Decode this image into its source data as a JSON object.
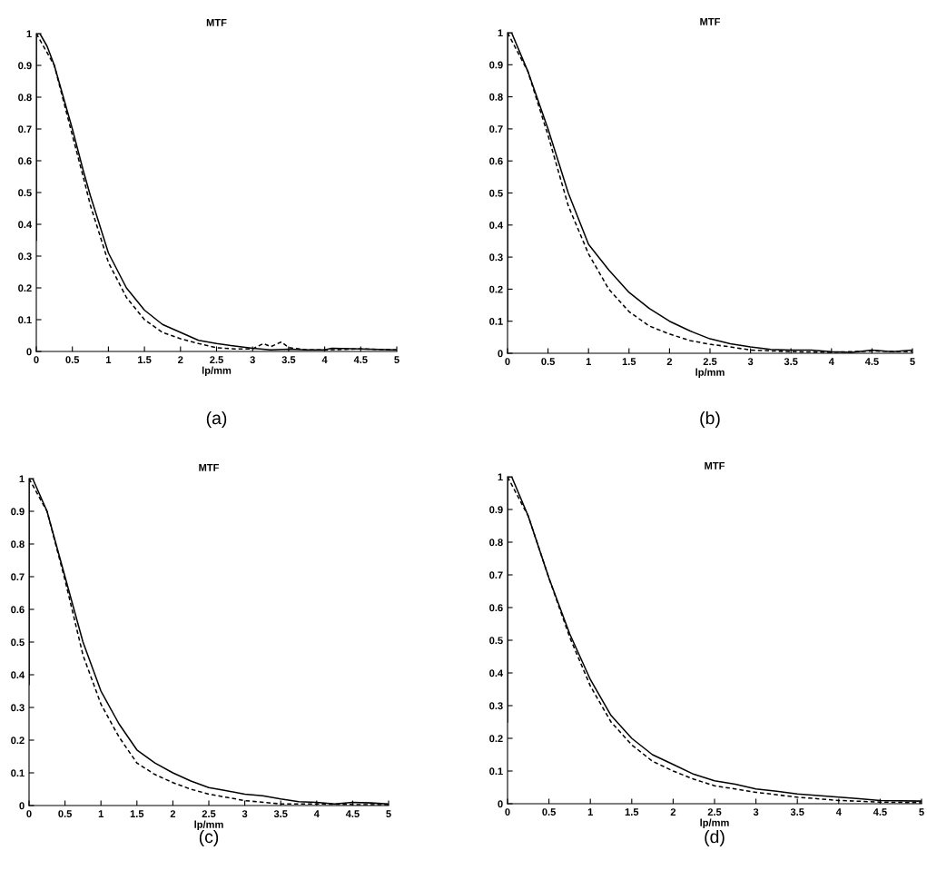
{
  "chart_data": [
    {
      "type": "line",
      "title": "MTF",
      "xlabel": "lp/mm",
      "annotations": [
        "(a)"
      ],
      "xlim": [
        0,
        5
      ],
      "ylim": [
        0,
        1
      ],
      "xticks": [
        0,
        0.5,
        1,
        1.5,
        2,
        2.5,
        3,
        3.5,
        4,
        4.5,
        5
      ],
      "yticks": [
        0,
        0.1,
        0.2,
        0.3,
        0.4,
        0.5,
        0.6,
        0.7,
        0.8,
        0.9,
        1
      ],
      "grid": false,
      "legend": false,
      "series": [
        {
          "color": "#000000",
          "line_style": "solid",
          "x": [
            0,
            0,
            0.05,
            0.15,
            0.25,
            0.35,
            0.5,
            0.65,
            0.75,
            1.0,
            1.25,
            1.5,
            1.75,
            2,
            2.25,
            2.5,
            2.75,
            3,
            3.25,
            3.5,
            3.75,
            4,
            4.1,
            4.5,
            5
          ],
          "values": [
            0.35,
            1.0,
            1.0,
            0.96,
            0.9,
            0.82,
            0.7,
            0.57,
            0.49,
            0.31,
            0.2,
            0.13,
            0.085,
            0.06,
            0.035,
            0.025,
            0.017,
            0.01,
            0.005,
            0.007,
            0.005,
            0.005,
            0.01,
            0.008,
            0.005
          ]
        },
        {
          "color": "#000000",
          "line_style": "dashed",
          "x": [
            0,
            0.25,
            0.5,
            0.65,
            0.75,
            1,
            1.25,
            1.5,
            1.75,
            2,
            2.25,
            2.5,
            2.75,
            3,
            3.15,
            3.25,
            3.4,
            3.5,
            3.75,
            4,
            4.5,
            5
          ],
          "values": [
            1.0,
            0.9,
            0.68,
            0.55,
            0.46,
            0.28,
            0.17,
            0.1,
            0.06,
            0.04,
            0.025,
            0.012,
            0.008,
            0.008,
            0.025,
            0.015,
            0.03,
            0.012,
            0.005,
            0.005,
            0.008,
            0.005
          ]
        }
      ]
    },
    {
      "type": "line",
      "title": "MTF",
      "xlabel": "lp/mm",
      "annotations": [
        "(b)"
      ],
      "xlim": [
        0,
        5
      ],
      "ylim": [
        0,
        1
      ],
      "xticks": [
        0,
        0.5,
        1,
        1.5,
        2,
        2.5,
        3,
        3.5,
        4,
        4.5,
        5
      ],
      "yticks": [
        0,
        0.1,
        0.2,
        0.3,
        0.4,
        0.5,
        0.6,
        0.7,
        0.8,
        0.9,
        1
      ],
      "grid": false,
      "legend": false,
      "series": [
        {
          "color": "#000000",
          "line_style": "solid",
          "x": [
            0,
            0,
            0.05,
            0.25,
            0.5,
            0.75,
            1,
            1.25,
            1.5,
            1.75,
            2,
            2.25,
            2.5,
            2.75,
            3,
            3.25,
            3.5,
            3.75,
            4,
            4.25,
            4.5,
            4.75,
            5
          ],
          "values": [
            0.1,
            1.0,
            1.0,
            0.88,
            0.7,
            0.5,
            0.34,
            0.26,
            0.19,
            0.14,
            0.1,
            0.07,
            0.045,
            0.03,
            0.02,
            0.012,
            0.01,
            0.01,
            0.005,
            0.003,
            0.01,
            0.005,
            0.01
          ]
        },
        {
          "color": "#000000",
          "line_style": "dashed",
          "x": [
            0,
            0.25,
            0.5,
            0.75,
            1,
            1.25,
            1.5,
            1.75,
            2,
            2.25,
            2.5,
            2.75,
            3,
            3.5,
            4,
            4.5,
            5
          ],
          "values": [
            1.0,
            0.88,
            0.68,
            0.46,
            0.31,
            0.2,
            0.13,
            0.085,
            0.06,
            0.04,
            0.028,
            0.02,
            0.01,
            0.005,
            0.003,
            0.007,
            0.005
          ]
        }
      ]
    },
    {
      "type": "line",
      "title": "MTF",
      "xlabel": "lp/mm",
      "annotations": [
        "(c)"
      ],
      "xlim": [
        0,
        5
      ],
      "ylim": [
        0,
        1
      ],
      "xticks": [
        0,
        0.5,
        1,
        1.5,
        2,
        2.5,
        3,
        3.5,
        4,
        4.5,
        5
      ],
      "yticks": [
        0,
        0.1,
        0.2,
        0.3,
        0.4,
        0.5,
        0.6,
        0.7,
        0.8,
        0.9,
        1
      ],
      "grid": false,
      "legend": false,
      "series": [
        {
          "color": "#000000",
          "line_style": "solid",
          "x": [
            0,
            0,
            0.05,
            0.25,
            0.5,
            0.75,
            1,
            1.25,
            1.5,
            1.75,
            2,
            2.25,
            2.5,
            2.75,
            3,
            3.25,
            3.5,
            3.75,
            4,
            4.25,
            4.5,
            4.75,
            5
          ],
          "values": [
            0.37,
            1.0,
            1.0,
            0.9,
            0.7,
            0.5,
            0.35,
            0.25,
            0.17,
            0.13,
            0.1,
            0.075,
            0.055,
            0.045,
            0.035,
            0.03,
            0.02,
            0.012,
            0.01,
            0.005,
            0.01,
            0.008,
            0.005
          ]
        },
        {
          "color": "#000000",
          "line_style": "dashed",
          "x": [
            0,
            0.25,
            0.5,
            0.75,
            1,
            1.25,
            1.5,
            1.75,
            2,
            2.25,
            2.5,
            2.75,
            3,
            3.5,
            4,
            4.5,
            5
          ],
          "values": [
            1.0,
            0.9,
            0.69,
            0.46,
            0.31,
            0.21,
            0.13,
            0.095,
            0.07,
            0.05,
            0.035,
            0.025,
            0.015,
            0.005,
            0.005,
            0.003,
            0.003
          ]
        }
      ]
    },
    {
      "type": "line",
      "title": "MTF",
      "xlabel": "lp/mm",
      "annotations": [
        "(d)"
      ],
      "xlim": [
        0,
        5
      ],
      "ylim": [
        0,
        1
      ],
      "xticks": [
        0,
        0.5,
        1,
        1.5,
        2,
        2.5,
        3,
        3.5,
        4,
        4.5,
        5
      ],
      "yticks": [
        0,
        0.1,
        0.2,
        0.3,
        0.4,
        0.5,
        0.6,
        0.7,
        0.8,
        0.9,
        1
      ],
      "grid": false,
      "legend": false,
      "series": [
        {
          "color": "#000000",
          "line_style": "solid",
          "x": [
            0,
            0,
            0.05,
            0.25,
            0.5,
            0.75,
            1,
            1.25,
            1.5,
            1.75,
            2,
            2.25,
            2.5,
            2.75,
            3,
            3.25,
            3.5,
            3.75,
            4,
            4.25,
            4.5,
            5
          ],
          "values": [
            0.25,
            1.0,
            1.0,
            0.88,
            0.69,
            0.52,
            0.38,
            0.27,
            0.2,
            0.15,
            0.12,
            0.09,
            0.07,
            0.06,
            0.045,
            0.038,
            0.03,
            0.025,
            0.02,
            0.015,
            0.01,
            0.008
          ]
        },
        {
          "color": "#000000",
          "line_style": "dashed",
          "x": [
            0,
            0.25,
            0.5,
            0.75,
            1,
            1.25,
            1.5,
            1.75,
            2,
            2.25,
            2.5,
            2.75,
            3,
            3.5,
            4,
            4.5,
            5
          ],
          "values": [
            1.0,
            0.88,
            0.69,
            0.51,
            0.36,
            0.25,
            0.18,
            0.13,
            0.1,
            0.075,
            0.055,
            0.045,
            0.035,
            0.02,
            0.01,
            0.005,
            0.003
          ]
        }
      ]
    }
  ]
}
